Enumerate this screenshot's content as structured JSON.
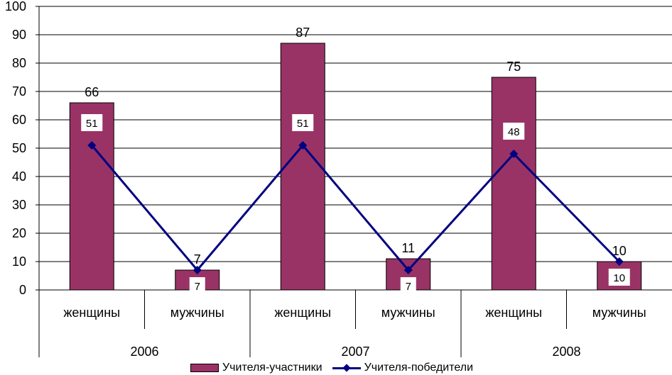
{
  "chart_data": {
    "type": "bar",
    "ylim": [
      0,
      100
    ],
    "yticks": [
      "0",
      "10",
      "20",
      "30",
      "40",
      "50",
      "60",
      "70",
      "80",
      "90",
      "100"
    ],
    "groups": [
      "2006",
      "2007",
      "2008"
    ],
    "categories": [
      "женщины",
      "мужчины",
      "женщины",
      "мужчины",
      "женщины",
      "мужчины"
    ],
    "series": [
      {
        "name": "Учителя-участники",
        "kind": "bar",
        "color": "#993366",
        "values": [
          66,
          7,
          87,
          11,
          75,
          10
        ],
        "value_labels": [
          "66",
          "7",
          "87",
          "11",
          "75",
          "10"
        ]
      },
      {
        "name": "Учителя-победители",
        "kind": "line",
        "color": "#000080",
        "values": [
          51,
          7,
          51,
          7,
          48,
          10
        ],
        "value_labels": [
          "51",
          "7",
          "51",
          "7",
          "48",
          "10"
        ]
      }
    ],
    "grid": "horizontal",
    "legend": "bottom"
  }
}
